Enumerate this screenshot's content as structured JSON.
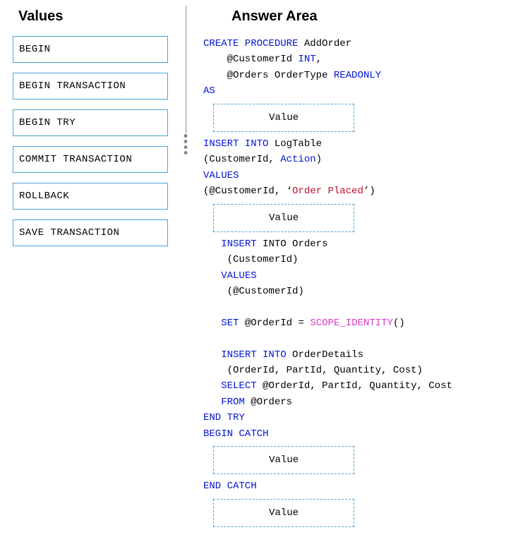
{
  "headings": {
    "values": "Values",
    "answer": "Answer Area"
  },
  "value_items": [
    "BEGIN",
    "BEGIN TRANSACTION",
    "BEGIN TRY",
    "COMMIT TRANSACTION",
    "ROLLBACK",
    "SAVE TRANSACTION"
  ],
  "drop_placeholder": "Value",
  "colors": {
    "keyword": "#0014cc",
    "string": "#c40e2f",
    "function": "#d63cc4",
    "box_border": "#4aa3d6",
    "divider": "#888888",
    "background": "#ffffff",
    "text": "#000000"
  },
  "code": {
    "line1_kw": "CREATE PROCEDURE",
    "line1_txt": " AddOrder",
    "line2a": "    @CustomerId ",
    "line2_kw": "INT",
    "line2b": ",",
    "line3a": "    @Orders OrderType ",
    "line3_kw": "READONLY",
    "line4_kw": "AS",
    "line5_kw": "INSERT INTO",
    "line5_txt": " LogTable",
    "line6a": "(CustomerId, ",
    "line6_kw": "Action",
    "line6b": ")",
    "line7_kw": "VALUES",
    "line8a": "(@CustomerId, ‘",
    "line8_str": "Order Placed",
    "line8b": "’)",
    "line9a": "   ",
    "line9_kw": "INSERT",
    "line9_txt": " INTO Orders",
    "line10": "    (CustomerId)",
    "line11a": "   ",
    "line11_kw": "VALUES",
    "line12": "    (@CustomerId)",
    "line13a": "   ",
    "line13_kw": "SET",
    "line13_txt": " @OrderId = ",
    "line13_fn": "SCOPE_IDENTITY",
    "line13b": "()",
    "line14a": "   ",
    "line14_kw": "INSERT INTO",
    "line14_txt": " OrderDetails",
    "line15": "    (OrderId, PartId, Quantity, Cost)",
    "line16a": "   ",
    "line16_kw": "SELECT",
    "line16_txt": " @OrderId, PartId, Quantity, Cost",
    "line17a": "   ",
    "line17_kw": "FROM",
    "line17_txt": " @Orders",
    "line18_kw": "END TRY",
    "line19_kw": "BEGIN CATCH",
    "line20_kw": "END CATCH"
  }
}
